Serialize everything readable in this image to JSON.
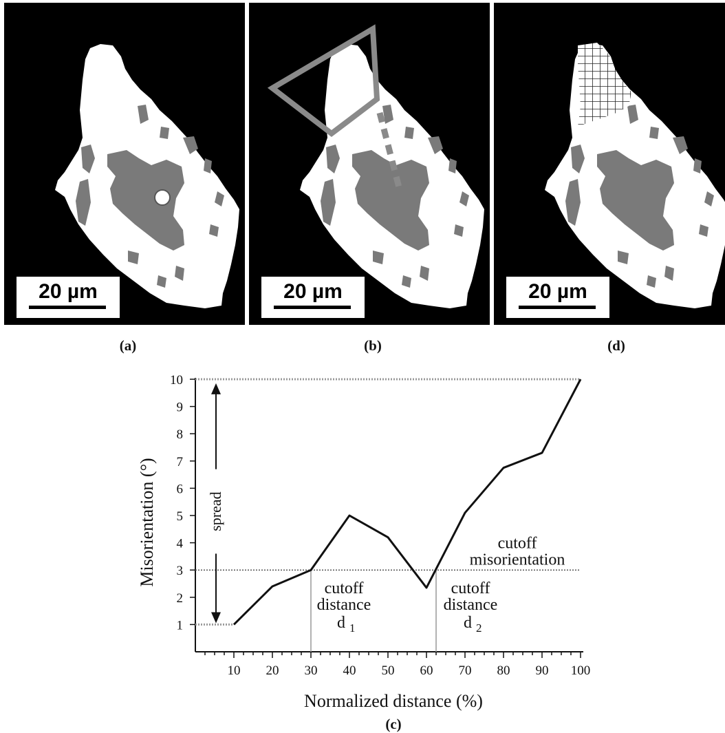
{
  "panels": [
    {
      "id": "a",
      "label": "(a)",
      "scale_bar": "20 µm"
    },
    {
      "id": "b",
      "label": "(b)",
      "scale_bar": "20 µm"
    },
    {
      "id": "d",
      "label": "(d)",
      "scale_bar": "20 µm"
    }
  ],
  "colors": {
    "grain": "#ffffff",
    "background": "#000000",
    "subregion": "#7a7a7a",
    "overlay": "#8a8a8a"
  },
  "chart_data": {
    "type": "line",
    "panel_label": "(c)",
    "xlabel": "Normalized distance (%)",
    "ylabel": "Misorientation (°)",
    "xlim": [
      0,
      100
    ],
    "ylim": [
      0,
      10
    ],
    "x_ticks": [
      10,
      20,
      30,
      40,
      50,
      60,
      70,
      80,
      90,
      100
    ],
    "y_ticks": [
      1,
      2,
      3,
      4,
      5,
      6,
      7,
      8,
      9,
      10
    ],
    "series": [
      {
        "x": [
          10,
          20,
          30,
          40,
          50,
          60,
          70,
          80,
          90,
          100
        ],
        "y": [
          1.0,
          2.4,
          3.0,
          5.0,
          4.2,
          2.35,
          5.1,
          6.75,
          7.3,
          10.0
        ]
      }
    ],
    "cutoff_misorientation": 3,
    "cutoff_distances": [
      30,
      62.5
    ],
    "annotations": {
      "spread": "spread",
      "cutoff_misorientation": [
        "cutoff",
        "misorientation"
      ],
      "d1": [
        "cutoff",
        "distance",
        "d",
        "1"
      ],
      "d2": [
        "cutoff",
        "distance",
        "d",
        "2"
      ]
    },
    "grid": false
  }
}
